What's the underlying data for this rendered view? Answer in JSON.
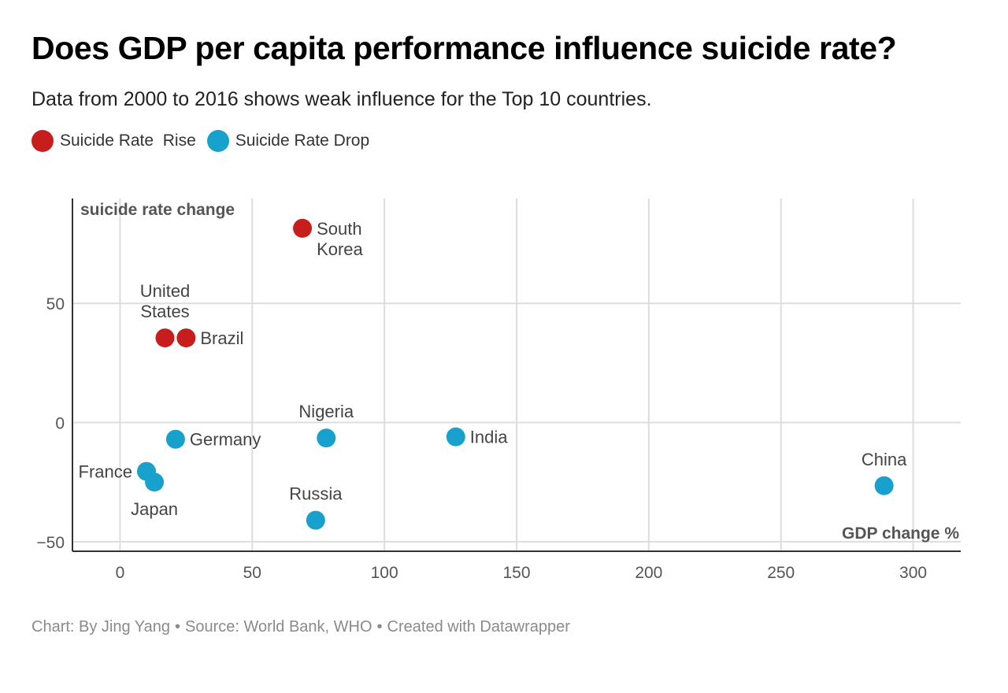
{
  "title": "Does GDP per capita performance influence suicide rate?",
  "subtitle": "Data from 2000 to 2016 shows weak influence for the Top 10 countries.",
  "legend": [
    {
      "label": "Suicide Rate  Rise",
      "color": "#c71e1d"
    },
    {
      "label": "Suicide Rate Drop",
      "color": "#18a1cd"
    }
  ],
  "footer": {
    "chart": "Chart: By Jing Yang",
    "source": "Source: World Bank, WHO",
    "created": "Created with Datawrapper",
    "separator": "•"
  },
  "chart_data": {
    "type": "scatter",
    "xlabel": "GDP change %",
    "ylabel": "suicide rate change",
    "xlim": [
      -18,
      318
    ],
    "ylim": [
      -54,
      94
    ],
    "xticks": [
      0,
      50,
      100,
      150,
      200,
      250,
      300
    ],
    "yticks": [
      50,
      0,
      -50
    ],
    "xtick_labels": [
      "0",
      "50",
      "100",
      "150",
      "200",
      "250",
      "300"
    ],
    "ytick_labels": [
      "50",
      "0",
      "−50"
    ],
    "grid": true,
    "colors": {
      "rise": "#c71e1d",
      "drop": "#18a1cd"
    },
    "points": [
      {
        "name": "South Korea",
        "label_lines": [
          "South",
          "Korea"
        ],
        "x": 69,
        "y": 81.5,
        "group": "rise",
        "label_pos": "right"
      },
      {
        "name": "United States",
        "label_lines": [
          "United",
          "States"
        ],
        "x": 17,
        "y": 35.5,
        "group": "rise",
        "label_pos": "top"
      },
      {
        "name": "Brazil",
        "label_lines": [
          "Brazil"
        ],
        "x": 25,
        "y": 35.5,
        "group": "rise",
        "label_pos": "right"
      },
      {
        "name": "Nigeria",
        "label_lines": [
          "Nigeria"
        ],
        "x": 78,
        "y": -6.5,
        "group": "drop",
        "label_pos": "top"
      },
      {
        "name": "Germany",
        "label_lines": [
          "Germany"
        ],
        "x": 21,
        "y": -7,
        "group": "drop",
        "label_pos": "right"
      },
      {
        "name": "India",
        "label_lines": [
          "India"
        ],
        "x": 127,
        "y": -6,
        "group": "drop",
        "label_pos": "right"
      },
      {
        "name": "France",
        "label_lines": [
          "France"
        ],
        "x": 10,
        "y": -20.5,
        "group": "drop",
        "label_pos": "left"
      },
      {
        "name": "Japan",
        "label_lines": [
          "Japan"
        ],
        "x": 13,
        "y": -25,
        "group": "drop",
        "label_pos": "bottom"
      },
      {
        "name": "Russia",
        "label_lines": [
          "Russia"
        ],
        "x": 74,
        "y": -41,
        "group": "drop",
        "label_pos": "top"
      },
      {
        "name": "China",
        "label_lines": [
          "China"
        ],
        "x": 289,
        "y": -26.5,
        "group": "drop",
        "label_pos": "top"
      }
    ]
  }
}
